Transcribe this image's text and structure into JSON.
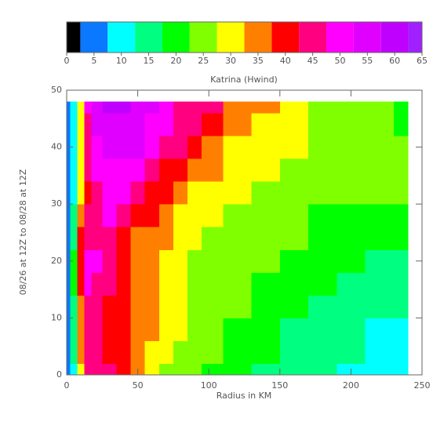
{
  "chart_data": {
    "type": "contour",
    "title": "Katrina (Hwind)",
    "xlabel": "Radius in KM",
    "ylabel": "08/26 at 12Z to 08/28 at 12Z",
    "xlim": [
      0,
      250
    ],
    "xticks": [
      0,
      50,
      100,
      150,
      200,
      250
    ],
    "ylim": [
      0,
      50
    ],
    "yticks": [
      0,
      10,
      20,
      30,
      40,
      50
    ],
    "colorbar": {
      "lim": [
        0,
        65
      ],
      "ticks": [
        0,
        5,
        10,
        15,
        20,
        25,
        30,
        35,
        40,
        45,
        50,
        55,
        60,
        65
      ]
    },
    "levels": [
      0,
      2.5,
      7.5,
      12.5,
      17.5,
      22.5,
      27.5,
      32.5,
      37.5,
      42.5,
      47.5,
      52.5,
      57.5,
      62.5,
      65
    ],
    "colors": [
      "#000000",
      "#0a78ff",
      "#00ffff",
      "#00ff80",
      "#00ff00",
      "#80ff00",
      "#ffff00",
      "#ff8000",
      "#ff0000",
      "#ff0080",
      "#ff00ff",
      "#e000ff",
      "#c000ff",
      "#a020ff"
    ],
    "x": [
      0,
      5,
      10,
      15,
      20,
      30,
      40,
      50,
      60,
      70,
      80,
      90,
      100,
      120,
      140,
      160,
      180,
      200,
      220,
      240
    ],
    "y": [
      0,
      4,
      8,
      12,
      16,
      20,
      24,
      28,
      32,
      36,
      40,
      44,
      48
    ],
    "z": [
      [
        5,
        12,
        32,
        44,
        46,
        44,
        40,
        34,
        29,
        26,
        25,
        23,
        21,
        19,
        17,
        15,
        14,
        12,
        11,
        10
      ],
      [
        5,
        13,
        34,
        46,
        46,
        41,
        38,
        34,
        31,
        28,
        26,
        25,
        23,
        21,
        18,
        16,
        15,
        13,
        12,
        11
      ],
      [
        5,
        14,
        35,
        46,
        47,
        42,
        39,
        35,
        33,
        30,
        28,
        26,
        25,
        22,
        20,
        17,
        16,
        15,
        12,
        12
      ],
      [
        5,
        16,
        37,
        47,
        47,
        42,
        39,
        35,
        33,
        30,
        28,
        26,
        25,
        23,
        21,
        18,
        17,
        15,
        13,
        13
      ],
      [
        5,
        18,
        40,
        48,
        47,
        43,
        40,
        36,
        34,
        30,
        28,
        26,
        25,
        24,
        22,
        19,
        18,
        16,
        15,
        14
      ],
      [
        5,
        18,
        40,
        50,
        50,
        44,
        40,
        36,
        34,
        31,
        29,
        27,
        26,
        24,
        23,
        21,
        19,
        18,
        17,
        17
      ],
      [
        5,
        16,
        38,
        46,
        46,
        45,
        41,
        36,
        34,
        33,
        30,
        28,
        26,
        25,
        24,
        23,
        21,
        20,
        20,
        21
      ],
      [
        5,
        14,
        34,
        44,
        47,
        48,
        46,
        42,
        38,
        35,
        32,
        30,
        28,
        26,
        25,
        24,
        22,
        22,
        22,
        22
      ],
      [
        4,
        12,
        30,
        42,
        47,
        50,
        50,
        47,
        42,
        38,
        35,
        32,
        30,
        28,
        26,
        25,
        24,
        24,
        24,
        23
      ],
      [
        4,
        11,
        29,
        44,
        49,
        52,
        52,
        50,
        46,
        42,
        39,
        36,
        34,
        30,
        28,
        26,
        25,
        25,
        25,
        24
      ],
      [
        4,
        10,
        28,
        45,
        51,
        54,
        54,
        53,
        50,
        46,
        43,
        40,
        37,
        32,
        30,
        28,
        26,
        26,
        25,
        24
      ],
      [
        4,
        9,
        28,
        46,
        53,
        56,
        57,
        55,
        52,
        50,
        46,
        43,
        40,
        34,
        30,
        28,
        26,
        25,
        25,
        22
      ],
      [
        4,
        9,
        30,
        48,
        54,
        60,
        61,
        57,
        54,
        51,
        47,
        45,
        43,
        36,
        33,
        29,
        26,
        25,
        25,
        22
      ]
    ]
  }
}
